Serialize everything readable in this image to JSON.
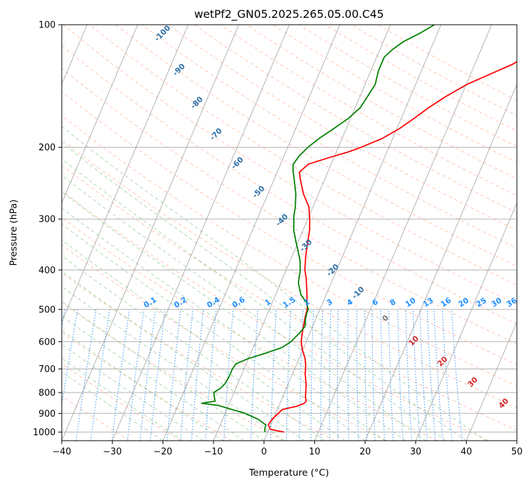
{
  "chart_data": {
    "type": "line",
    "title": "wetPf2_GN05.2025.265.05.00.C45",
    "xlabel": "Temperature (°C)",
    "ylabel": "Pressure (hPa)",
    "xlim": [
      -40,
      50
    ],
    "ylim": [
      1050,
      100
    ],
    "y_scale": "log",
    "grid": true,
    "x_ticks": [
      -40,
      -30,
      -20,
      -10,
      0,
      10,
      20,
      30,
      40,
      50
    ],
    "y_ticks": [
      1000,
      900,
      800,
      700,
      600,
      500,
      400,
      300,
      200,
      100
    ],
    "colors": {
      "temperature": "#ff0000",
      "dewpoint": "#008000",
      "dry_adiabat": "#ff7f50",
      "moist_adiabat": "#2ca02c",
      "mixing_ratio": "#1f8fff",
      "isotherm": "#808080"
    },
    "series": [
      {
        "points": [
          [
            1000,
            3.2
          ],
          [
            985,
            0.3
          ],
          [
            960,
            -0.5
          ],
          [
            930,
            -0.2
          ],
          [
            900,
            0.5
          ],
          [
            880,
            1.0
          ],
          [
            865,
            3.5
          ],
          [
            850,
            4.8
          ],
          [
            840,
            5.0
          ],
          [
            820,
            4.5
          ],
          [
            800,
            4.2
          ],
          [
            760,
            3.5
          ],
          [
            720,
            2.5
          ],
          [
            690,
            2.0
          ],
          [
            660,
            1.2
          ],
          [
            630,
            0.0
          ],
          [
            600,
            -1.0
          ],
          [
            560,
            -1.7
          ],
          [
            520,
            -2.3
          ],
          [
            500,
            -2.5
          ],
          [
            460,
            -3.8
          ],
          [
            420,
            -5.3
          ],
          [
            400,
            -6.3
          ],
          [
            370,
            -7.3
          ],
          [
            340,
            -8.1
          ],
          [
            320,
            -8.7
          ],
          [
            300,
            -9.6
          ],
          [
            280,
            -10.8
          ],
          [
            260,
            -13.0
          ],
          [
            240,
            -14.8
          ],
          [
            230,
            -15.6
          ],
          [
            220,
            -14.5
          ],
          [
            212,
            -11.0
          ],
          [
            205,
            -7.5
          ],
          [
            200,
            -5.5
          ],
          [
            190,
            -2.0
          ],
          [
            180,
            0.5
          ],
          [
            170,
            2.5
          ],
          [
            160,
            4.5
          ],
          [
            150,
            7.0
          ],
          [
            140,
            10.2
          ],
          [
            130,
            15.0
          ],
          [
            125,
            17.5
          ],
          [
            115,
            21.0
          ],
          [
            108,
            23.0
          ],
          [
            100,
            24.5
          ]
        ]
      },
      {
        "points": [
          [
            1000,
            -0.6
          ],
          [
            985,
            -0.8
          ],
          [
            960,
            -1.0
          ],
          [
            930,
            -3.0
          ],
          [
            900,
            -6.0
          ],
          [
            880,
            -9.0
          ],
          [
            860,
            -12.0
          ],
          [
            850,
            -15.5
          ],
          [
            840,
            -13.0
          ],
          [
            820,
            -13.5
          ],
          [
            800,
            -14.0
          ],
          [
            780,
            -13.0
          ],
          [
            760,
            -12.5
          ],
          [
            730,
            -12.3
          ],
          [
            700,
            -12.3
          ],
          [
            680,
            -12.0
          ],
          [
            660,
            -10.0
          ],
          [
            640,
            -7.0
          ],
          [
            620,
            -4.3
          ],
          [
            600,
            -3.0
          ],
          [
            570,
            -2.0
          ],
          [
            550,
            -1.5
          ],
          [
            530,
            -2.0
          ],
          [
            510,
            -2.3
          ],
          [
            500,
            -2.3
          ],
          [
            480,
            -3.3
          ],
          [
            460,
            -5.0
          ],
          [
            430,
            -6.5
          ],
          [
            400,
            -7.2
          ],
          [
            380,
            -8.0
          ],
          [
            360,
            -9.2
          ],
          [
            340,
            -10.5
          ],
          [
            320,
            -11.8
          ],
          [
            305,
            -12.5
          ],
          [
            295,
            -13.0
          ],
          [
            280,
            -13.5
          ],
          [
            260,
            -14.5
          ],
          [
            240,
            -16.0
          ],
          [
            228,
            -17.0
          ],
          [
            220,
            -17.5
          ],
          [
            210,
            -17.0
          ],
          [
            200,
            -16.0
          ],
          [
            190,
            -14.5
          ],
          [
            180,
            -12.5
          ],
          [
            170,
            -10.5
          ],
          [
            160,
            -9.0
          ],
          [
            150,
            -8.5
          ],
          [
            140,
            -8.0
          ],
          [
            130,
            -8.5
          ],
          [
            125,
            -8.5
          ],
          [
            120,
            -8.5
          ],
          [
            115,
            -7.5
          ],
          [
            110,
            -6.0
          ],
          [
            105,
            -3.5
          ],
          [
            100,
            -1.3
          ]
        ]
      }
    ],
    "isotherm_labels": [
      "0",
      "10",
      "20",
      "30",
      "40"
    ],
    "dry_adiabat_labels": [
      "-100",
      "-90",
      "-80",
      "-70",
      "-60",
      "-50",
      "-40",
      "-30",
      "-20",
      "-10"
    ],
    "mixing_ratio_labels": [
      "0.1",
      "0.2",
      "0.4",
      "0.6",
      "1",
      "1.5",
      "2",
      "3",
      "4",
      "6",
      "8",
      "10",
      "13",
      "16",
      "20",
      "25",
      "30",
      "36"
    ]
  }
}
